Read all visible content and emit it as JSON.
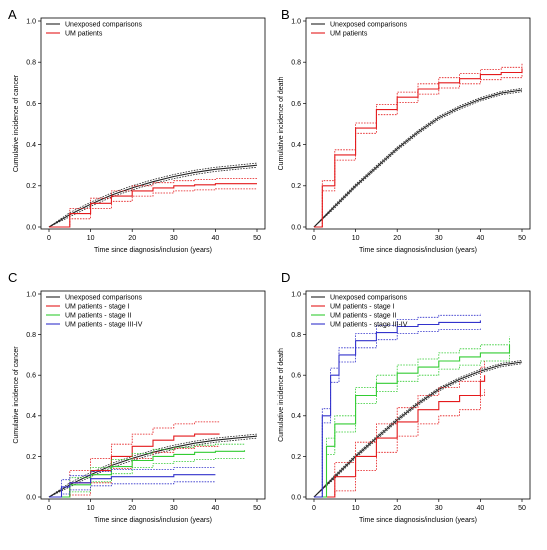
{
  "chart_data": [
    {
      "type": "line",
      "panel": "A",
      "xlabel": "Time since diagnosis/inclusion (years)",
      "ylabel": "Cumulative incidence of cancer",
      "xlim": [
        0,
        50
      ],
      "ylim": [
        0,
        1
      ],
      "xticks": [
        "0",
        "10",
        "20",
        "30",
        "40",
        "50"
      ],
      "yticks": [
        "0.0",
        "0.2",
        "0.4",
        "0.6",
        "0.8",
        "1.0"
      ],
      "grid": false,
      "legend_position": "top-left",
      "legend": [
        "Unexposed comparisons",
        "UM patients"
      ],
      "series": [
        {
          "name": "Unexposed comparisons",
          "color": "#222222",
          "ci": true,
          "ci_width": 0.01,
          "x": [
            0,
            5,
            10,
            15,
            20,
            25,
            30,
            35,
            40,
            45,
            50
          ],
          "y": [
            0,
            0.06,
            0.11,
            0.155,
            0.19,
            0.22,
            0.245,
            0.265,
            0.28,
            0.29,
            0.3
          ]
        },
        {
          "name": "UM patients",
          "color": "#e41a1c",
          "ci": true,
          "ci_width": 0.025,
          "step": true,
          "x": [
            0,
            5,
            10,
            15,
            20,
            25,
            30,
            35,
            40,
            45,
            50
          ],
          "y": [
            0,
            0.065,
            0.115,
            0.15,
            0.175,
            0.19,
            0.2,
            0.205,
            0.21,
            0.21,
            0.21
          ]
        }
      ]
    },
    {
      "type": "line",
      "panel": "B",
      "xlabel": "Time since diagnosis/inclusion (years)",
      "ylabel": "Cumulative incidence of death",
      "xlim": [
        0,
        50
      ],
      "ylim": [
        0,
        1
      ],
      "xticks": [
        "0",
        "10",
        "20",
        "30",
        "40",
        "50"
      ],
      "yticks": [
        "0.0",
        "0.2",
        "0.4",
        "0.6",
        "0.8",
        "1.0"
      ],
      "grid": false,
      "legend_position": "top-left",
      "legend": [
        "Unexposed comparisons",
        "UM patients"
      ],
      "series": [
        {
          "name": "Unexposed comparisons",
          "color": "#222222",
          "ci": true,
          "ci_width": 0.008,
          "x": [
            0,
            5,
            10,
            15,
            20,
            25,
            30,
            35,
            40,
            45,
            50
          ],
          "y": [
            0,
            0.1,
            0.2,
            0.29,
            0.38,
            0.46,
            0.53,
            0.58,
            0.62,
            0.65,
            0.665
          ]
        },
        {
          "name": "UM patients",
          "color": "#e41a1c",
          "ci": true,
          "ci_width": 0.025,
          "step": true,
          "x": [
            0,
            2,
            5,
            10,
            15,
            20,
            25,
            30,
            35,
            40,
            45,
            50
          ],
          "y": [
            0,
            0.2,
            0.35,
            0.48,
            0.57,
            0.63,
            0.67,
            0.7,
            0.72,
            0.74,
            0.75,
            0.77
          ]
        }
      ]
    },
    {
      "type": "line",
      "panel": "C",
      "xlabel": "Time since diagnosis/inclusion (years)",
      "ylabel": "Cumulative incidence of cancer",
      "xlim": [
        0,
        50
      ],
      "ylim": [
        0,
        1
      ],
      "xticks": [
        "0",
        "10",
        "20",
        "30",
        "40",
        "50"
      ],
      "yticks": [
        "0.0",
        "0.2",
        "0.4",
        "0.6",
        "0.8",
        "1.0"
      ],
      "grid": false,
      "legend_position": "top-left",
      "legend": [
        "Unexposed comparisons",
        "UM patients - stage I",
        "UM patients - stage II",
        "UM patients - stage III-IV"
      ],
      "series": [
        {
          "name": "Unexposed comparisons",
          "color": "#222222",
          "ci": true,
          "ci_width": 0.01,
          "x": [
            0,
            5,
            10,
            15,
            20,
            25,
            30,
            35,
            40,
            45,
            50
          ],
          "y": [
            0,
            0.06,
            0.11,
            0.155,
            0.19,
            0.22,
            0.245,
            0.265,
            0.28,
            0.29,
            0.3
          ]
        },
        {
          "name": "UM patients - stage I",
          "color": "#e41a1c",
          "ci": true,
          "ci_width": 0.06,
          "step": true,
          "x": [
            0,
            5,
            10,
            15,
            20,
            25,
            30,
            35,
            41
          ],
          "y": [
            0,
            0.07,
            0.13,
            0.2,
            0.25,
            0.28,
            0.3,
            0.31,
            0.31
          ]
        },
        {
          "name": "UM patients - stage II",
          "color": "#33cc33",
          "ci": true,
          "ci_width": 0.035,
          "step": true,
          "x": [
            0,
            5,
            10,
            15,
            20,
            25,
            30,
            35,
            40,
            47
          ],
          "y": [
            0,
            0.06,
            0.11,
            0.15,
            0.18,
            0.2,
            0.21,
            0.22,
            0.225,
            0.23
          ]
        },
        {
          "name": "UM patients - stage III-IV",
          "color": "#3333cc",
          "ci": true,
          "ci_width": 0.035,
          "step": true,
          "x": [
            0,
            3,
            5,
            10,
            15,
            20,
            30,
            40
          ],
          "y": [
            0,
            0.05,
            0.07,
            0.09,
            0.1,
            0.1,
            0.11,
            0.11
          ]
        }
      ]
    },
    {
      "type": "line",
      "panel": "D",
      "xlabel": "Time since diagnosis/inclusion (years)",
      "ylabel": "Cumulative incidence of death",
      "xlim": [
        0,
        50
      ],
      "ylim": [
        0,
        1
      ],
      "xticks": [
        "0",
        "10",
        "20",
        "30",
        "40",
        "50"
      ],
      "yticks": [
        "0.0",
        "0.2",
        "0.4",
        "0.6",
        "0.8",
        "1.0"
      ],
      "grid": false,
      "legend_position": "top-left",
      "legend": [
        "Unexposed comparisons",
        "UM patients - stage I",
        "UM patients - stage II",
        "UM patients - stage III-IV"
      ],
      "series": [
        {
          "name": "Unexposed comparisons",
          "color": "#222222",
          "ci": true,
          "ci_width": 0.008,
          "x": [
            0,
            5,
            10,
            15,
            20,
            25,
            30,
            35,
            40,
            45,
            50
          ],
          "y": [
            0,
            0.1,
            0.2,
            0.29,
            0.38,
            0.46,
            0.53,
            0.58,
            0.62,
            0.65,
            0.665
          ]
        },
        {
          "name": "UM patients - stage I",
          "color": "#e41a1c",
          "ci": true,
          "ci_width": 0.07,
          "step": true,
          "x": [
            0,
            5,
            10,
            15,
            20,
            25,
            30,
            35,
            40,
            41
          ],
          "y": [
            0,
            0.1,
            0.2,
            0.29,
            0.37,
            0.43,
            0.47,
            0.5,
            0.57,
            0.6
          ]
        },
        {
          "name": "UM patients - stage II",
          "color": "#33cc33",
          "ci": true,
          "ci_width": 0.04,
          "step": true,
          "x": [
            0,
            3,
            5,
            10,
            15,
            20,
            25,
            30,
            35,
            40,
            47
          ],
          "y": [
            0,
            0.25,
            0.36,
            0.5,
            0.56,
            0.61,
            0.64,
            0.67,
            0.69,
            0.71,
            0.75
          ]
        },
        {
          "name": "UM patients - stage III-IV",
          "color": "#3333cc",
          "ci": true,
          "ci_width": 0.035,
          "step": true,
          "x": [
            0,
            2,
            4,
            6,
            10,
            15,
            20,
            25,
            30,
            40
          ],
          "y": [
            0,
            0.4,
            0.6,
            0.7,
            0.77,
            0.81,
            0.84,
            0.85,
            0.86,
            0.87
          ]
        }
      ]
    }
  ]
}
